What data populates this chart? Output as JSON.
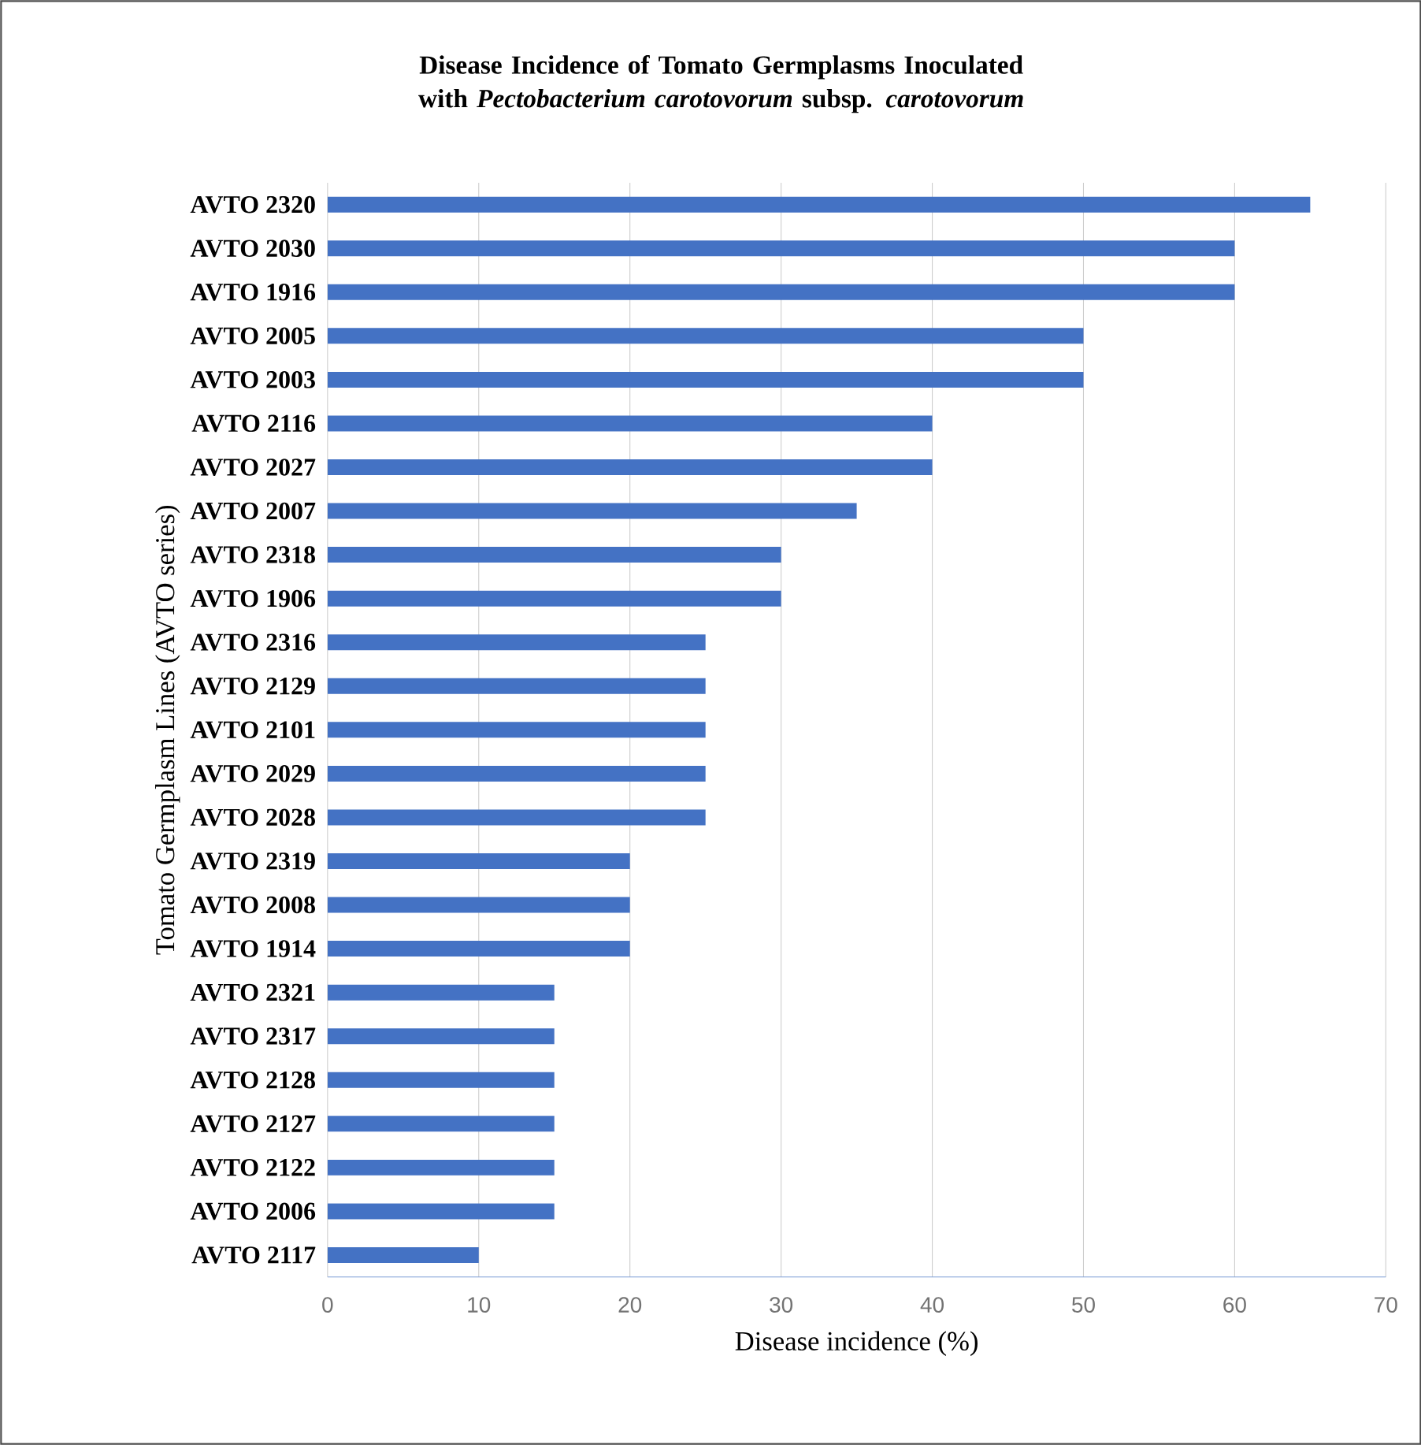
{
  "chart_data": {
    "type": "bar",
    "orientation": "horizontal",
    "title": "Disease Incidence of Tomato Germplasms Inoculated with *Pectobacterium carotovorum* subsp. *carotovorum*",
    "xlabel": "Disease incidence (%)",
    "ylabel": "Tomato Germplasm Lines (AVTO series)",
    "categories": [
      "AVTO 2320",
      "AVTO 2030",
      "AVTO 1916",
      "AVTO 2005",
      "AVTO 2003",
      "AVTO 2116",
      "AVTO 2027",
      "AVTO 2007",
      "AVTO 2318",
      "AVTO 1906",
      "AVTO 2316",
      "AVTO 2129",
      "AVTO 2101",
      "AVTO 2029",
      "AVTO 2028",
      "AVTO 2319",
      "AVTO 2008",
      "AVTO 1914",
      "AVTO 2321",
      "AVTO 2317",
      "AVTO 2128",
      "AVTO 2127",
      "AVTO 2122",
      "AVTO 2006",
      "AVTO 2117"
    ],
    "values": [
      65,
      60,
      60,
      50,
      50,
      40,
      40,
      35,
      30,
      30,
      25,
      25,
      25,
      25,
      25,
      20,
      20,
      20,
      15,
      15,
      15,
      15,
      15,
      15,
      10
    ],
    "color": "#4472c4",
    "xlim": [
      0,
      70
    ],
    "xticks": [
      0,
      10,
      20,
      30,
      40,
      50,
      60,
      70
    ],
    "grid": "x"
  }
}
